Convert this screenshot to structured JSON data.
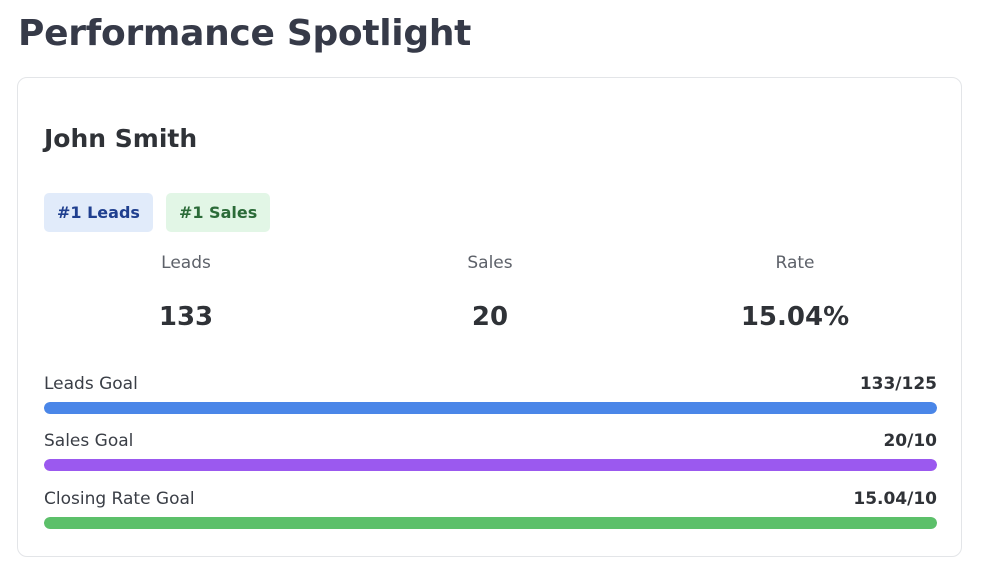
{
  "page": {
    "title": "Performance Spotlight"
  },
  "spotlight": {
    "name": "John Smith",
    "badges": [
      {
        "label": "#1 Leads",
        "color_bg": "#e1ebfa",
        "color_text": "#1f3f8f"
      },
      {
        "label": "#1 Sales",
        "color_bg": "#e2f6e6",
        "color_text": "#2b6b38"
      }
    ],
    "stats": [
      {
        "label": "Leads",
        "value": "133"
      },
      {
        "label": "Sales",
        "value": "20"
      },
      {
        "label": "Rate",
        "value": "15.04%"
      }
    ],
    "goals": [
      {
        "label": "Leads Goal",
        "ratio": "133/125",
        "progress": 1.0,
        "color": "#4a86e8"
      },
      {
        "label": "Sales Goal",
        "ratio": "20/10",
        "progress": 1.0,
        "color": "#9b59ef"
      },
      {
        "label": "Closing Rate Goal",
        "ratio": "15.04/10",
        "progress": 1.0,
        "color": "#5cc06a"
      }
    ]
  }
}
